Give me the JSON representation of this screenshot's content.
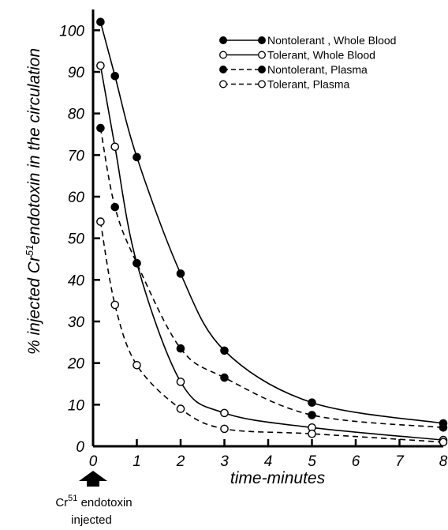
{
  "chart_data": {
    "type": "line",
    "title": "",
    "xlabel": "time-minutes",
    "ylabel": "% injected Cr51endotoxin in the circulation",
    "ylabel_main": "% injected Cr",
    "ylabel_sup": "51",
    "ylabel_rest": "endotoxin in the circulation",
    "xlim": [
      0,
      8
    ],
    "ylim": [
      0,
      105
    ],
    "x_ticks": [
      0,
      1,
      2,
      3,
      4,
      5,
      6,
      7,
      8
    ],
    "y_ticks": [
      0,
      10,
      20,
      30,
      40,
      50,
      60,
      70,
      80,
      90,
      100
    ],
    "grid": false,
    "legend_position": "top-right",
    "series": [
      {
        "name": "Nontolerant , Whole Blood",
        "line_style": "solid",
        "marker": "filled",
        "points": [
          [
            0.17,
            102
          ],
          [
            0.5,
            89
          ],
          [
            1,
            69.5
          ],
          [
            2,
            41.5
          ],
          [
            3,
            23
          ],
          [
            5,
            10.5
          ],
          [
            8,
            5.5
          ]
        ]
      },
      {
        "name": "Tolerant, Whole Blood",
        "line_style": "solid",
        "marker": "open",
        "points": [
          [
            0.17,
            91.5
          ],
          [
            0.5,
            72
          ],
          [
            1,
            44
          ],
          [
            2,
            15.5
          ],
          [
            3,
            8
          ],
          [
            5,
            4.5
          ],
          [
            8,
            1.5
          ]
        ]
      },
      {
        "name": "Nontolerant, Plasma",
        "line_style": "dashed",
        "marker": "filled",
        "points": [
          [
            0.17,
            76.5
          ],
          [
            0.5,
            57.5
          ],
          [
            1,
            44
          ],
          [
            2,
            23.5
          ],
          [
            3,
            16.5
          ],
          [
            5,
            7.5
          ],
          [
            8,
            4.5
          ]
        ]
      },
      {
        "name": "Tolerant, Plasma",
        "line_style": "dashed",
        "marker": "open",
        "points": [
          [
            0.17,
            54
          ],
          [
            0.5,
            34
          ],
          [
            1,
            19.5
          ],
          [
            2,
            9
          ],
          [
            3,
            4.2
          ],
          [
            5,
            3
          ],
          [
            8,
            1
          ]
        ]
      }
    ],
    "annotation": {
      "label_main": "Cr",
      "label_sup": "51",
      "label_rest": " endotoxin",
      "label_line2": "injected",
      "x": 0
    }
  }
}
